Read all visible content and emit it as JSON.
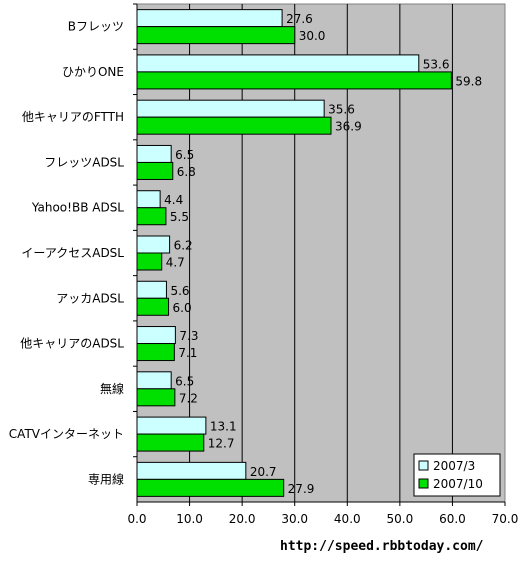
{
  "chart_data": {
    "type": "bar",
    "orientation": "horizontal",
    "categories": [
      "Bフレッツ",
      "ひかりONE",
      "他キャリアのFTTH",
      "フレッツADSL",
      "Yahoo!BB ADSL",
      "イーアクセスADSL",
      "アッカADSL",
      "他キャリアのADSL",
      "無線",
      "CATVインターネット",
      "専用線"
    ],
    "series": [
      {
        "name": "2007/3",
        "color": "#ccffff",
        "values": [
          27.6,
          53.6,
          35.6,
          6.5,
          4.4,
          6.2,
          5.6,
          7.3,
          6.5,
          13.1,
          20.7
        ],
        "labels": [
          "27.6",
          "53.6",
          "35.6",
          "6.5",
          "4.4",
          "6.2",
          "5.6",
          "7.3",
          "6.5",
          "13.1",
          "20.7"
        ]
      },
      {
        "name": "2007/10",
        "color": "#00e000",
        "values": [
          30.0,
          59.8,
          36.9,
          6.8,
          5.5,
          4.7,
          6.0,
          7.1,
          7.2,
          12.7,
          27.9
        ],
        "labels": [
          "30.0",
          "59.8",
          "36.9",
          "6.8",
          "5.5",
          "4.7",
          "6.0",
          "7.1",
          "7.2",
          "12.7",
          "27.9"
        ]
      }
    ],
    "xlim": [
      0,
      70
    ],
    "ticks": [
      "0.0",
      "10.0",
      "20.0",
      "30.0",
      "40.0",
      "50.0",
      "60.0",
      "70.0"
    ],
    "tick_values": [
      0,
      10,
      20,
      30,
      40,
      50,
      60,
      70
    ],
    "grid": true,
    "plot_background": "#c0c0c0",
    "legend_position": "bottom-right",
    "title": "",
    "xlabel": "",
    "ylabel": ""
  },
  "source_url": "http://speed.rbbtoday.com/"
}
